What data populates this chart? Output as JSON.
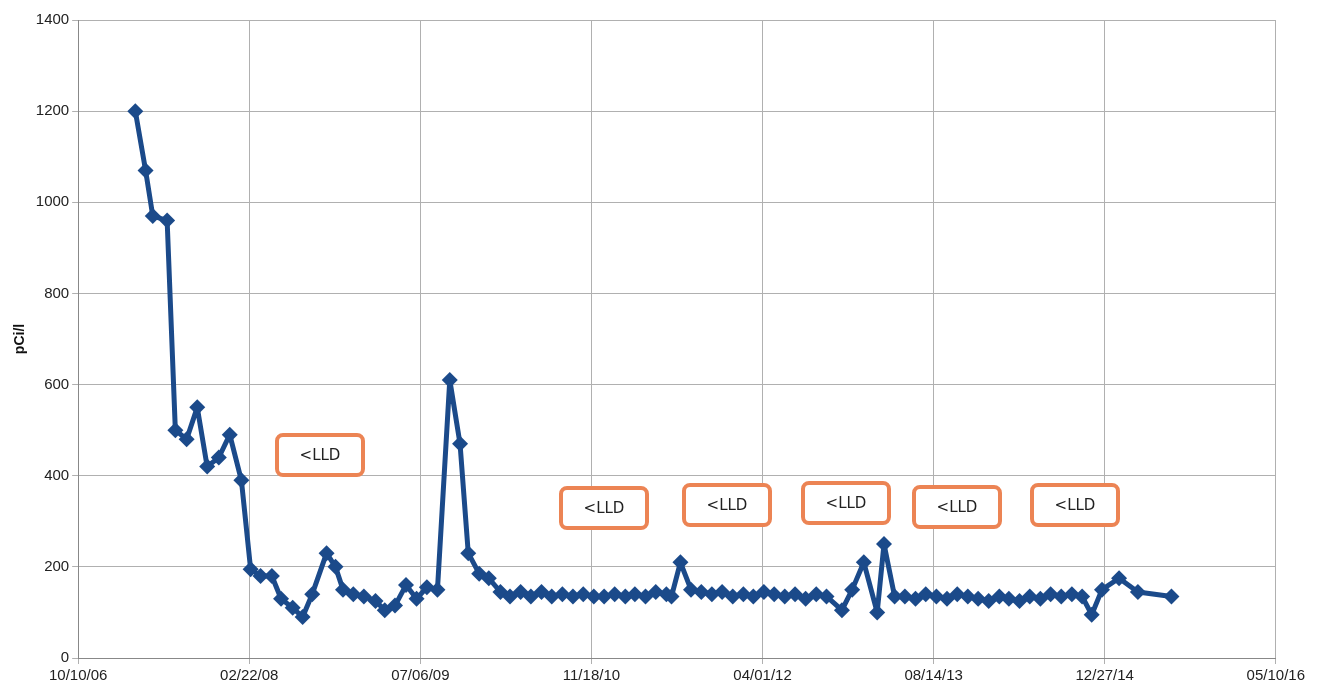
{
  "chart_data": {
    "type": "line",
    "ylabel": "pCi/l",
    "color": "#1b4a8a",
    "marker": "diamond",
    "line_style": "solid",
    "grid": true,
    "legend": false,
    "xlim": [
      "2006-10-10",
      "2016-05-10"
    ],
    "xticks": [
      {
        "value": "2006-10-10",
        "label": "10/10/06"
      },
      {
        "value": "2008-02-22",
        "label": "02/22/08"
      },
      {
        "value": "2009-07-06",
        "label": "07/06/09"
      },
      {
        "value": "2010-11-18",
        "label": "11/18/10"
      },
      {
        "value": "2012-04-01",
        "label": "04/01/12"
      },
      {
        "value": "2013-08-14",
        "label": "08/14/13"
      },
      {
        "value": "2014-12-27",
        "label": "12/27/14"
      },
      {
        "value": "2016-05-10",
        "label": "05/10/16"
      }
    ],
    "ylim": [
      0,
      1400
    ],
    "yticks": [
      0,
      200,
      400,
      600,
      800,
      1000,
      1200,
      1400
    ],
    "x": [
      "2007-03-26",
      "2007-04-25",
      "2007-05-16",
      "2007-06-27",
      "2007-07-21",
      "2007-08-23",
      "2007-09-23",
      "2007-10-22",
      "2007-11-25",
      "2007-12-27",
      "2008-01-30",
      "2008-02-26",
      "2008-03-26",
      "2008-04-28",
      "2008-05-25",
      "2008-06-28",
      "2008-07-27",
      "2008-08-24",
      "2008-10-05",
      "2008-10-31",
      "2008-11-22",
      "2008-12-22",
      "2009-01-22",
      "2009-02-25",
      "2009-03-24",
      "2009-04-23",
      "2009-05-25",
      "2009-06-25",
      "2009-07-25",
      "2009-08-25",
      "2009-09-30",
      "2009-10-30",
      "2009-11-23",
      "2009-12-25",
      "2010-01-22",
      "2010-02-25",
      "2010-03-25",
      "2010-04-25",
      "2010-05-25",
      "2010-06-25",
      "2010-07-25",
      "2010-08-25",
      "2010-09-25",
      "2010-10-25",
      "2010-11-25",
      "2010-12-25",
      "2011-01-25",
      "2011-02-25",
      "2011-03-25",
      "2011-04-25",
      "2011-05-25",
      "2011-06-25",
      "2011-07-10",
      "2011-08-05",
      "2011-09-05",
      "2011-10-05",
      "2011-11-05",
      "2011-12-05",
      "2012-01-05",
      "2012-02-05",
      "2012-03-05",
      "2012-04-05",
      "2012-05-05",
      "2012-06-05",
      "2012-07-05",
      "2012-08-05",
      "2012-09-05",
      "2012-10-05",
      "2012-11-19",
      "2012-12-19",
      "2013-01-22",
      "2013-03-02",
      "2013-03-22",
      "2013-04-22",
      "2013-05-22",
      "2013-06-22",
      "2013-07-22",
      "2013-08-22",
      "2013-09-22",
      "2013-10-22",
      "2013-11-22",
      "2013-12-22",
      "2014-01-22",
      "2014-02-22",
      "2014-03-22",
      "2014-04-22",
      "2014-05-22",
      "2014-06-22",
      "2014-07-22",
      "2014-08-22",
      "2014-09-22",
      "2014-10-22",
      "2014-11-19",
      "2014-12-19",
      "2015-02-07",
      "2015-04-03",
      "2015-07-10"
    ],
    "values": [
      1200,
      1070,
      970,
      960,
      500,
      480,
      550,
      420,
      440,
      490,
      390,
      195,
      180,
      180,
      130,
      110,
      90,
      140,
      230,
      200,
      150,
      140,
      135,
      125,
      105,
      115,
      160,
      130,
      155,
      150,
      610,
      470,
      230,
      185,
      175,
      145,
      135,
      145,
      135,
      145,
      135,
      140,
      135,
      140,
      135,
      135,
      140,
      135,
      140,
      135,
      145,
      140,
      135,
      210,
      150,
      145,
      140,
      145,
      135,
      140,
      135,
      145,
      140,
      135,
      140,
      130,
      140,
      135,
      105,
      150,
      210,
      100,
      250,
      135,
      135,
      130,
      140,
      135,
      130,
      140,
      135,
      130,
      125,
      135,
      130,
      125,
      135,
      130,
      140,
      135,
      140,
      135,
      95,
      150,
      175,
      145,
      135
    ],
    "annotations": [
      "<LLD",
      "<LLD",
      "<LLD",
      "<LLD",
      "<LLD",
      "<LLD"
    ]
  }
}
